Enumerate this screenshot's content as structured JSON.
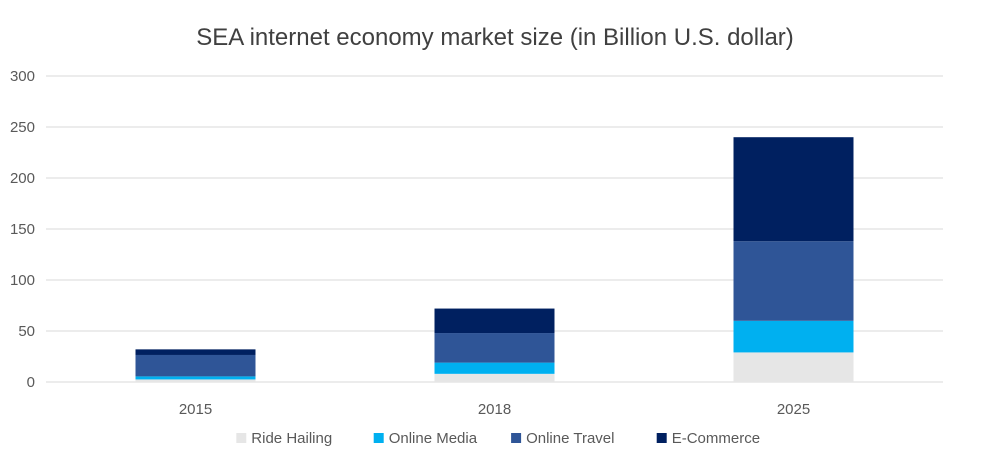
{
  "chart_data": {
    "type": "bar",
    "stacked": true,
    "title": "SEA internet economy market size (in Billion U.S. dollar)",
    "xlabel": "",
    "ylabel": "",
    "categories": [
      "2015",
      "2018",
      "2025"
    ],
    "ylim": [
      0,
      300
    ],
    "yticks": [
      0,
      50,
      100,
      150,
      200,
      250,
      300
    ],
    "grid": true,
    "legend_position": "bottom",
    "series": [
      {
        "name": "Ride Hailing",
        "color": "#e6e6e6",
        "values": [
          2.5,
          8,
          29
        ]
      },
      {
        "name": "Online Media",
        "color": "#00b0f0",
        "values": [
          3,
          11,
          31
        ]
      },
      {
        "name": "Online Travel",
        "color": "#2f5597",
        "values": [
          21,
          29,
          78
        ]
      },
      {
        "name": "E-Commerce",
        "color": "#002060",
        "values": [
          5.5,
          24,
          102
        ]
      }
    ]
  }
}
